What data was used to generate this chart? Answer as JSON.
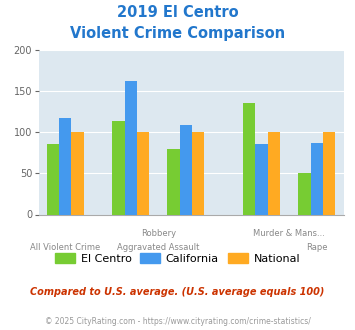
{
  "title_line1": "2019 El Centro",
  "title_line2": "Violent Crime Comparison",
  "el_centro_values": [
    85,
    113,
    80,
    135,
    50
  ],
  "california_values": [
    117,
    162,
    108,
    86,
    87
  ],
  "national_values": [
    100,
    100,
    100,
    100,
    100
  ],
  "color_el_centro": "#77cc33",
  "color_california": "#4499ee",
  "color_national": "#ffaa22",
  "color_background": "#dde8f0",
  "color_title": "#2277cc",
  "color_note": "#cc3300",
  "color_footer": "#999999",
  "color_xlabel": "#888888",
  "ylim": [
    0,
    200
  ],
  "yticks": [
    0,
    50,
    100,
    150,
    200
  ],
  "bar_width": 0.18,
  "x_positions": [
    0.0,
    0.95,
    1.75,
    2.85,
    3.65
  ],
  "label_top": [
    "",
    "Robbery",
    "Murder & Mans...",
    "",
    ""
  ],
  "label_bottom": [
    "All Violent Crime",
    "Aggravated Assault",
    "",
    "Rape",
    ""
  ],
  "legend_labels": [
    "El Centro",
    "California",
    "National"
  ],
  "note_text": "Compared to U.S. average. (U.S. average equals 100)",
  "footer_text": "© 2025 CityRating.com - https://www.cityrating.com/crime-statistics/"
}
